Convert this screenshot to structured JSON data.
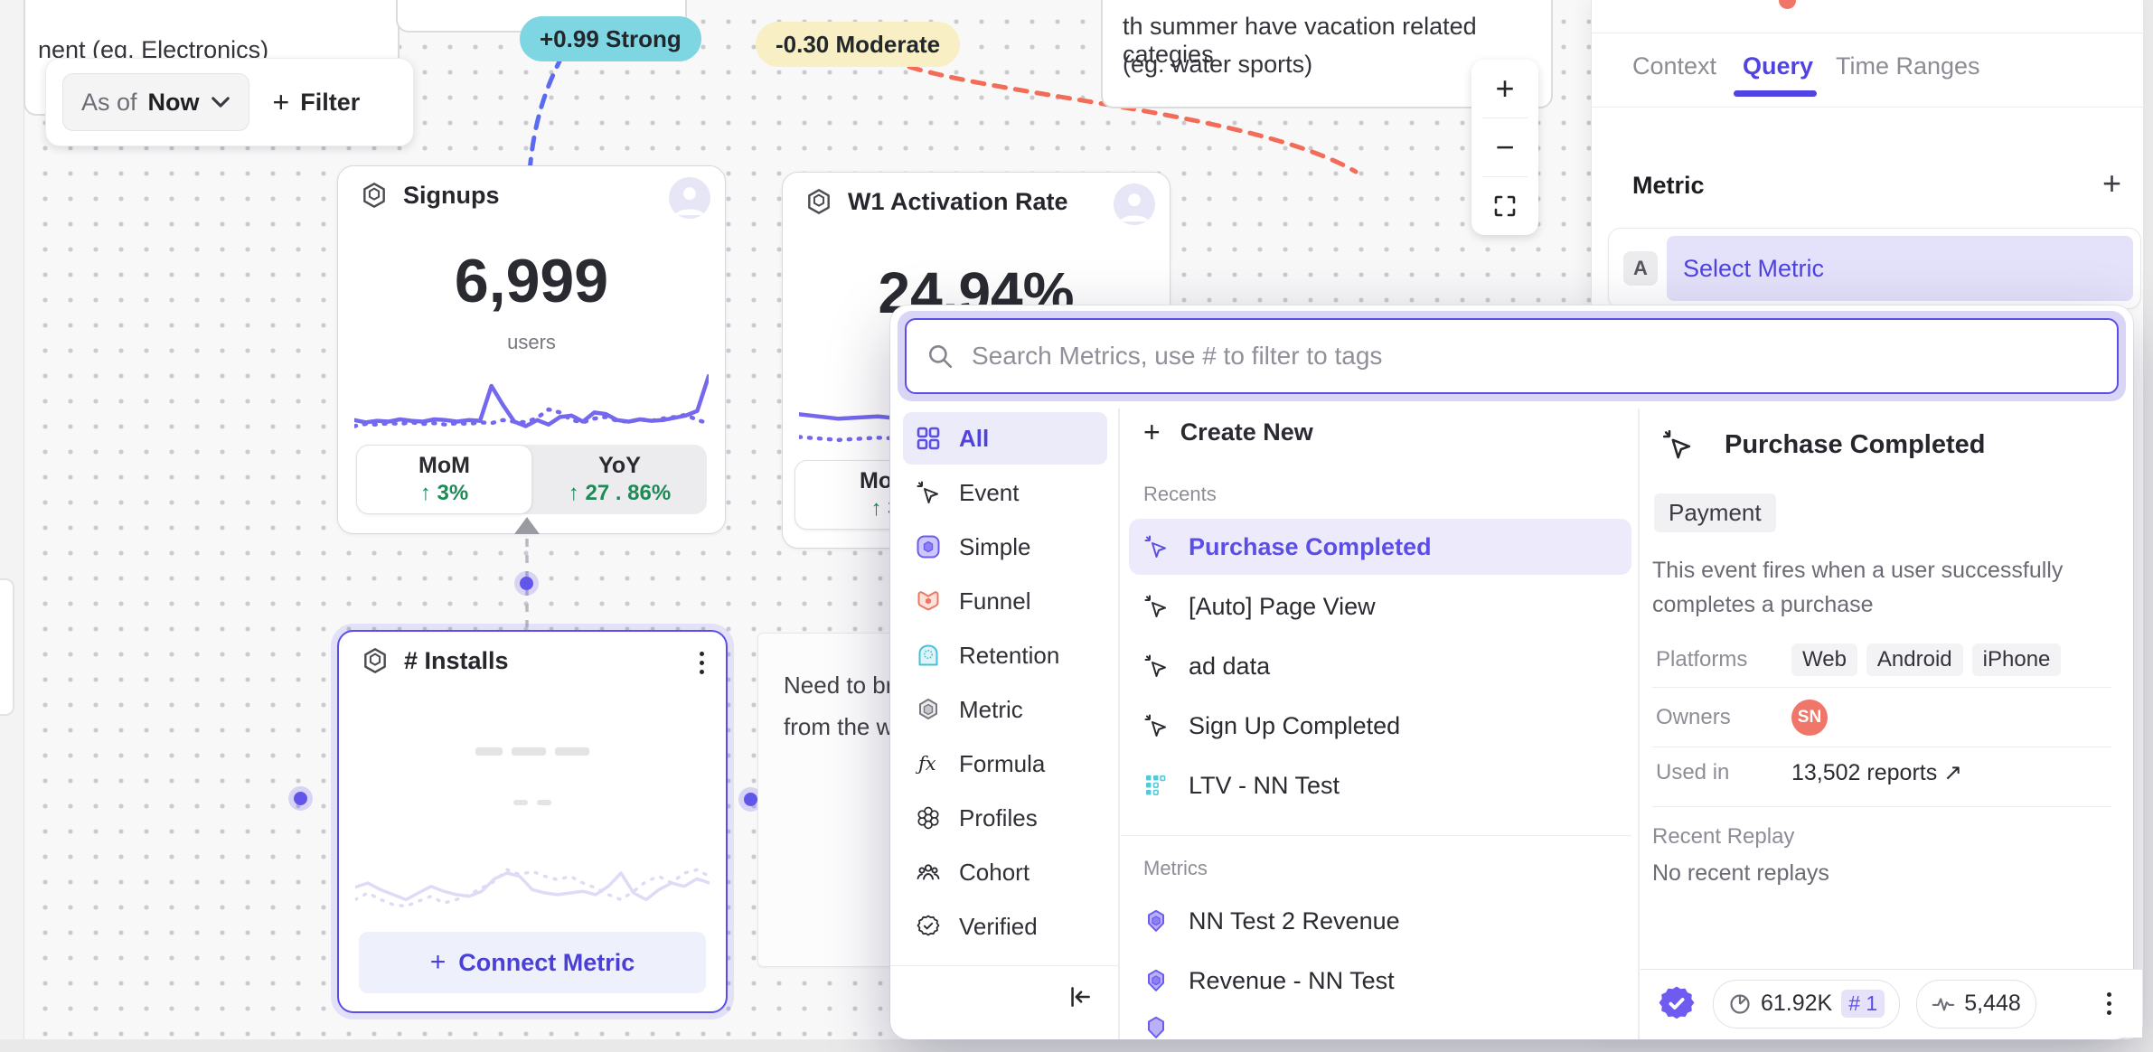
{
  "canvas": {
    "note_topleft_text": "nent  (eg. Electronics)",
    "note_top_line1": "th summer have vacation related categies",
    "note_top_line2": "(eg. water sports)",
    "note_side_line1": "Need to brin",
    "note_side_line2": "from the wa",
    "badge_positive": "+0.99 Strong",
    "badge_negative": "-0.30 Moderate"
  },
  "toolbar": {
    "as_of_label": "As of",
    "as_of_value": "Now",
    "filter_label": "Filter",
    "plus": "+"
  },
  "cards": {
    "signups": {
      "title": "Signups",
      "value": "6,999",
      "unit": "users",
      "mom_label": "MoM",
      "mom_value": "↑ 3%",
      "yoy_label": "YoY",
      "yoy_value": "↑ 27 . 86%"
    },
    "activation": {
      "title": "W1 Activation Rate",
      "value": "24.94%",
      "mom_label": "MoM",
      "mom_value": "↑ 3"
    },
    "installs": {
      "title": "# Installs",
      "plus": "+",
      "connect_label": "Connect Metric"
    }
  },
  "panel": {
    "tabs": [
      "Context",
      "Query",
      "Time Ranges"
    ],
    "metric_heading": "Metric",
    "add": "+",
    "row_badge": "A",
    "row_label": "Select Metric",
    "footer": {
      "queries": "61.92K",
      "rank": "# 1",
      "events": "5,448"
    }
  },
  "modal": {
    "search_placeholder": "Search Metrics, use # to filter to tags",
    "categories": [
      {
        "label": "All"
      },
      {
        "label": "Event"
      },
      {
        "label": "Simple"
      },
      {
        "label": "Funnel"
      },
      {
        "label": "Retention"
      },
      {
        "label": "Metric"
      },
      {
        "label": "Formula"
      },
      {
        "label": "Profiles"
      },
      {
        "label": "Cohort"
      },
      {
        "label": "Verified"
      }
    ],
    "plus": "+",
    "create_new_label": "Create New",
    "recents_label": "Recents",
    "recents": [
      {
        "label": "Purchase Completed"
      },
      {
        "label": "[Auto] Page View"
      },
      {
        "label": "ad data"
      },
      {
        "label": "Sign Up Completed"
      },
      {
        "label": "LTV - NN Test"
      }
    ],
    "metrics_label": "Metrics",
    "metrics": [
      {
        "label": "NN Test 2 Revenue"
      },
      {
        "label": "Revenue - NN Test"
      }
    ],
    "detail": {
      "title": "Purchase Completed",
      "tag": "Payment",
      "description": "This event fires when a user successfully completes a purchase",
      "platforms_label": "Platforms",
      "platforms": [
        "Web",
        "Android",
        "iPhone"
      ],
      "owners_label": "Owners",
      "owner_initials": "SN",
      "used_in_label": "Used in",
      "used_in_value": "13,502 reports",
      "used_in_arrow": "↗",
      "recent_replay_label": "Recent Replay",
      "recent_replay_value": "No recent replays"
    }
  },
  "colors": {
    "accent": "#5b4ee6",
    "accent_light": "#eceafb",
    "green": "#1d8a58",
    "teal_badge": "#7ed6e2",
    "yellow_badge": "#f9efc4",
    "coral": "#f0766a",
    "chart": "#7468ee",
    "chart_faint": "#dedbf7"
  },
  "chart_data": [
    {
      "type": "line",
      "title": "Signups sparkline",
      "color": "#7468ee",
      "stroke_width": 4.5,
      "ylim": [
        0,
        100
      ],
      "series": [
        {
          "name": "current",
          "style": "solid",
          "values": [
            30,
            27,
            29,
            28,
            31,
            29,
            28,
            31,
            30,
            28,
            30,
            29,
            75,
            50,
            28,
            22,
            30,
            24,
            34,
            36,
            28,
            40,
            38,
            30,
            28,
            31,
            29,
            30,
            33,
            36,
            42,
            88
          ]
        },
        {
          "name": "previous",
          "style": "dotted",
          "values": [
            22,
            25,
            24,
            26,
            25,
            27,
            25,
            26,
            24,
            26,
            25,
            27,
            26,
            30,
            28,
            27,
            33,
            44,
            40,
            30,
            27,
            32,
            34,
            29,
            28,
            31,
            29,
            32,
            34,
            37,
            30,
            26
          ]
        }
      ]
    },
    {
      "type": "line",
      "title": "W1 Activation Rate sparkline",
      "color": "#7468ee",
      "stroke_width": 4.5,
      "ylim": [
        0,
        100
      ],
      "series": [
        {
          "name": "current",
          "style": "solid",
          "values": [
            58,
            52,
            55,
            50,
            53,
            48,
            50,
            44,
            40,
            30
          ]
        },
        {
          "name": "previous",
          "style": "dotted",
          "values": [
            28,
            24,
            27,
            25,
            30,
            32,
            28,
            24,
            20,
            14
          ]
        }
      ]
    },
    {
      "type": "line",
      "title": "# Installs placeholder sparkline",
      "color": "#dedbf7",
      "stroke_width": 3.5,
      "ylim": [
        0,
        100
      ],
      "series": [
        {
          "name": "current",
          "style": "solid",
          "values": [
            45,
            50,
            42,
            36,
            30,
            38,
            46,
            40,
            36,
            34,
            40,
            55,
            62,
            58,
            42,
            38,
            36,
            38,
            40,
            36,
            46,
            62,
            38,
            30,
            42,
            50,
            46,
            55,
            50
          ]
        },
        {
          "name": "previous",
          "style": "dotted",
          "values": [
            30,
            38,
            30,
            24,
            22,
            28,
            34,
            26,
            30,
            36,
            44,
            52,
            66,
            60,
            64,
            58,
            54,
            58,
            50,
            44,
            36,
            30,
            40,
            52,
            58,
            50,
            62,
            66,
            58
          ]
        }
      ]
    }
  ]
}
